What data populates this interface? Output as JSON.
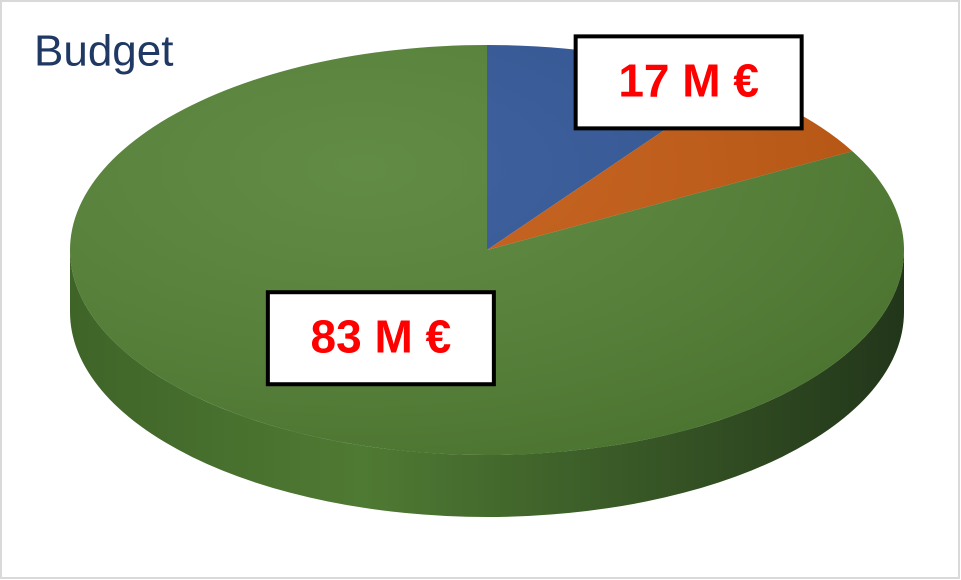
{
  "chart_data": {
    "type": "pie",
    "title": "Budget",
    "values": [
      10,
      7,
      83
    ],
    "colors": [
      "#2f5597",
      "#c55a11",
      "#548235"
    ],
    "annotations": [
      {
        "label": "17 M €",
        "value": 17
      },
      {
        "label": "83 M €",
        "value": 83
      }
    ]
  }
}
